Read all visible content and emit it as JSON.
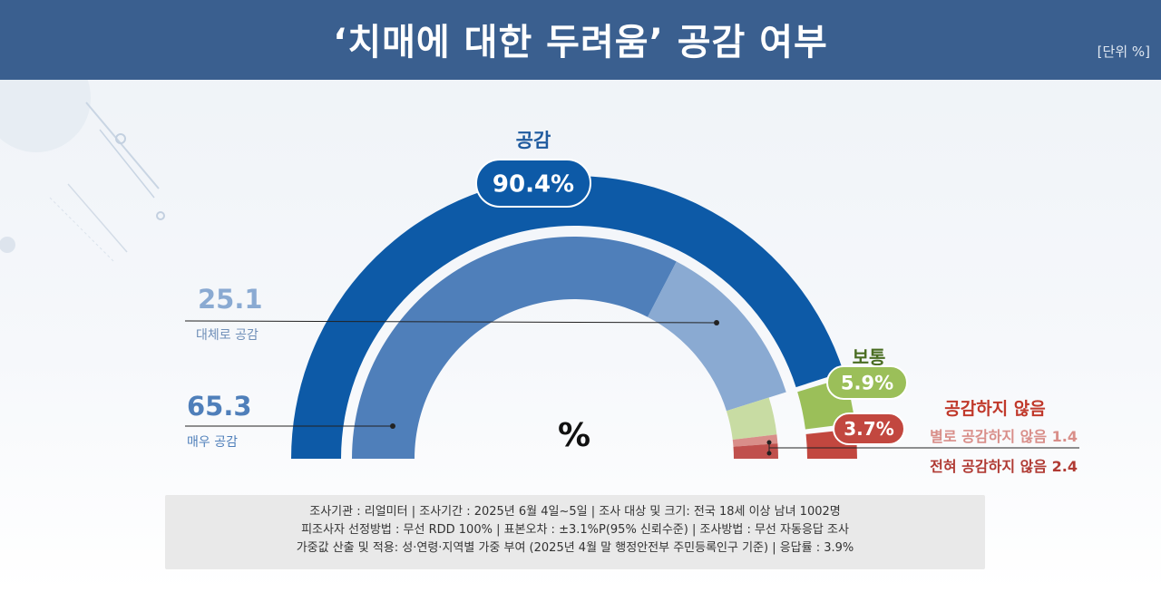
{
  "header": {
    "title": "‘치매에 대한 두려움’ 공감 여부",
    "unit": "[단위 %]"
  },
  "chart_data": {
    "type": "gauge",
    "center_label": "%",
    "groups": [
      {
        "name": "공감",
        "value_label": "90.4%",
        "value": 90.4,
        "color": "#0d5aa7",
        "segments": [
          {
            "name": "매우 공감",
            "value": 65.3,
            "value_label": "65.3",
            "color": "#4f7fba"
          },
          {
            "name": "대체로 공감",
            "value": 25.1,
            "value_label": "25.1",
            "color": "#8aaad2"
          }
        ]
      },
      {
        "name": "보통",
        "value_label": "5.9%",
        "value": 5.9,
        "color": "#9bbf59",
        "segments": [
          {
            "name": "보통",
            "value": 5.9,
            "color": "#c8dca3"
          }
        ]
      },
      {
        "name": "공감하지 않음",
        "value_label": "3.7%",
        "value": 3.7,
        "color": "#c2473f",
        "segments": [
          {
            "name": "별로 공감하지 않음",
            "value": 1.4,
            "value_label": "별로 공감하지 않음 1.4",
            "color": "#d98e89"
          },
          {
            "name": "전혀 공감하지 않음",
            "value": 2.4,
            "value_label": "전혀 공감하지 않음 2.4",
            "color": "#c0504d"
          }
        ]
      }
    ]
  },
  "footer": {
    "line1": "조사기관 : 리얼미터  |  조사기간 : 2025년 6월 4일~5일 | 조사 대상 및 크기: 전국 18세 이상 남녀 1002명",
    "line2": "피조사자 선정방법 : 무선 RDD 100% | 표본오차 : ±3.1%P(95% 신뢰수준) | 조사방법 : 무선 자동응답 조사",
    "line3": "가중값 산출 및 적용: 성·연령·지역별 가중 부여 (2025년 4월 말 행정안전부 주민등록인구 기준) | 응답률 : 3.9%"
  }
}
